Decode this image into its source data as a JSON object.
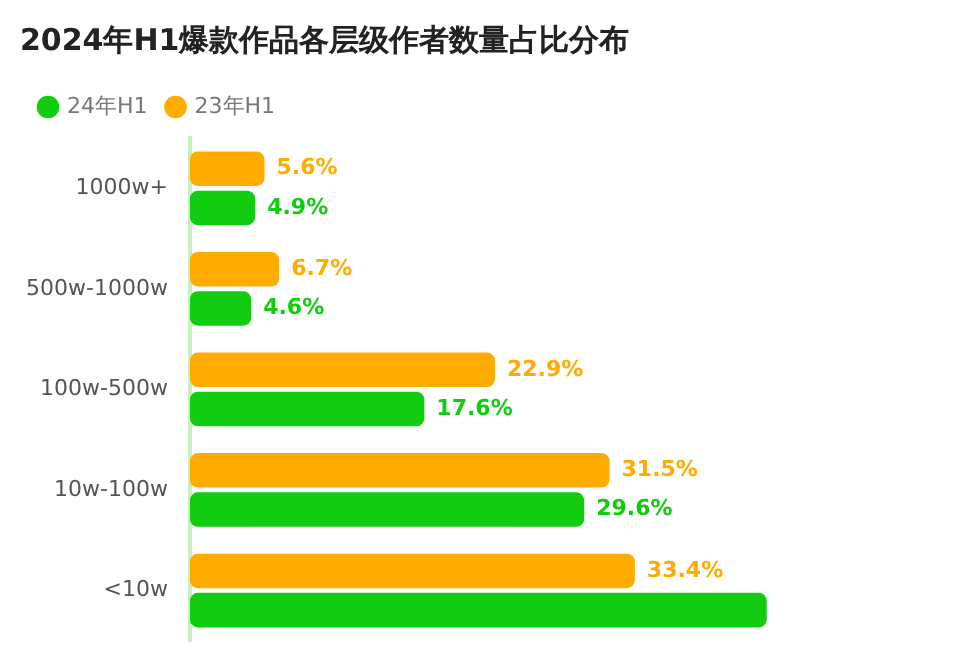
{
  "chart_data": {
    "type": "bar",
    "orientation": "horizontal",
    "title": "2024年H1爆款作品各层级作者数量占比分布",
    "categories": [
      "1000w+",
      "500w-1000w",
      "100w-500w",
      "10w-100w",
      "<10w"
    ],
    "series": [
      {
        "name": "24年H1",
        "color": "#11cc11",
        "values": [
          4.9,
          4.6,
          17.6,
          29.6,
          43.3
        ],
        "value_labels": [
          "4.9%",
          "4.6%",
          "17.6%",
          "29.6%",
          null
        ]
      },
      {
        "name": "23年H1",
        "color": "#ffab00",
        "values": [
          5.6,
          6.7,
          22.9,
          31.5,
          33.4
        ],
        "value_labels": [
          "5.6%",
          "6.7%",
          "22.9%",
          "31.5%",
          "33.4%"
        ]
      }
    ],
    "legend": "top left",
    "grid": false,
    "tick_labels": "y"
  }
}
